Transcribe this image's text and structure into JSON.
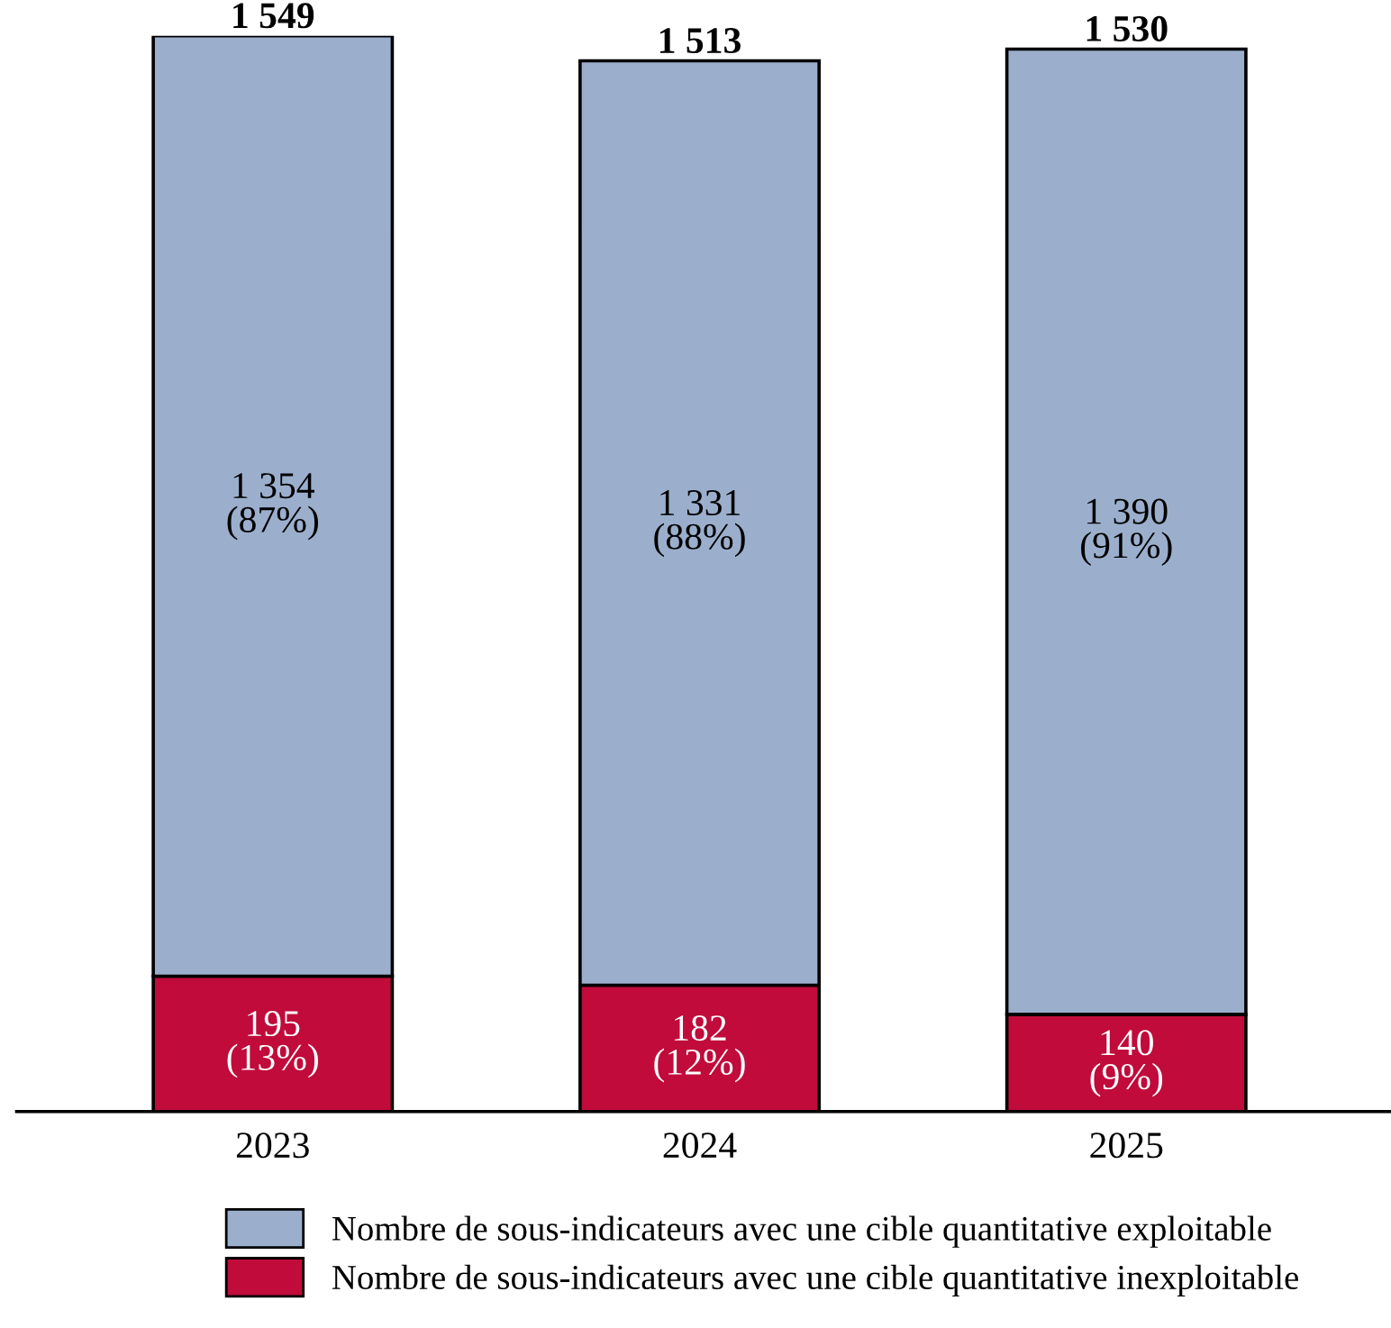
{
  "chart_data": {
    "type": "bar",
    "stacked": true,
    "categories": [
      "2023",
      "2024",
      "2025"
    ],
    "series": [
      {
        "name": "Nombre de sous-indicateurs avec une cible quantitative inexploitable",
        "color": "#c00b3b",
        "values": [
          195,
          182,
          140
        ],
        "value_labels": [
          "195\n(13%)",
          "182\n(12%)",
          "140\n(9%)"
        ]
      },
      {
        "name": "Nombre de sous-indicateurs avec une cible quantitative exploitable",
        "color": "#9bafcd",
        "values": [
          1354,
          1331,
          1390
        ],
        "value_labels": [
          "1 354\n(87%)",
          "1 331\n(88%)",
          "1 390\n(91%)"
        ]
      }
    ],
    "totals": [
      "1 549",
      "1 513",
      "1 530"
    ],
    "legend": "bottom",
    "grid": false
  }
}
